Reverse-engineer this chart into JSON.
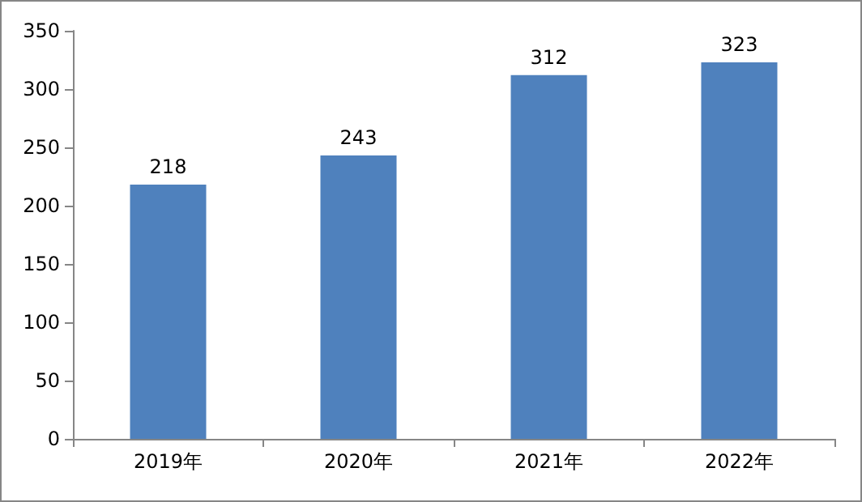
{
  "chart_data": {
    "type": "bar",
    "categories": [
      "2019年",
      "2020年",
      "2021年",
      "2022年"
    ],
    "values": [
      218,
      243,
      312,
      323
    ],
    "color": "#4f81bd",
    "ylim": [
      0,
      350
    ],
    "yticks": [
      0,
      50,
      100,
      150,
      200,
      250,
      300,
      350
    ],
    "grid": false,
    "data_labels": true
  }
}
